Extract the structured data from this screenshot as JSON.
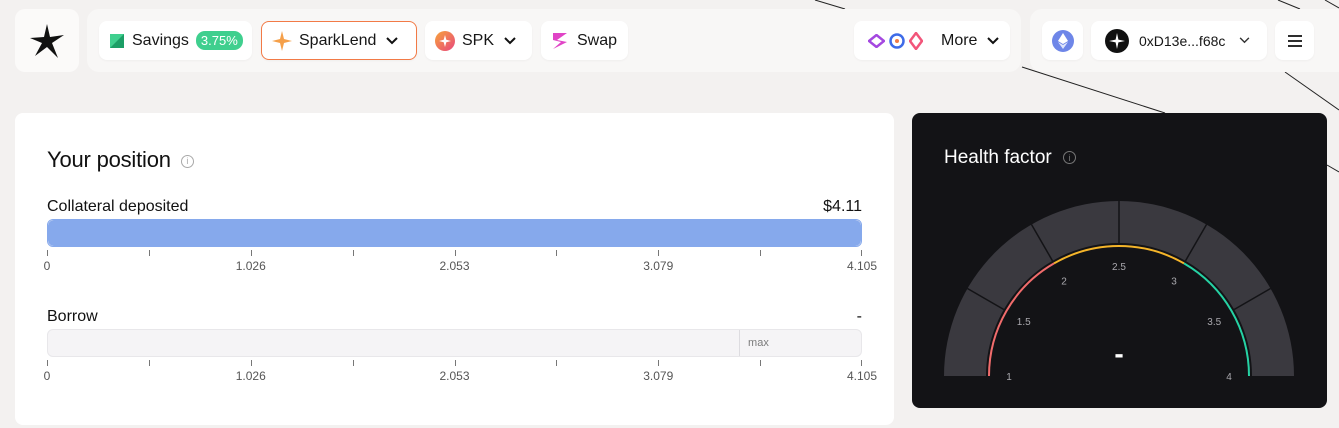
{
  "nav": {
    "savings_label": "Savings",
    "savings_rate": "3.75%",
    "sparklend_label": "SparkLend",
    "spk_label": "SPK",
    "swap_label": "Swap",
    "more_label": "More"
  },
  "wallet": {
    "address": "0xD13e...f68c",
    "network_icon": "ethereum-icon"
  },
  "position": {
    "title": "Your position",
    "collateral_label": "Collateral deposited",
    "collateral_value": "$4.11",
    "collateral_fill_fraction": 1.0,
    "borrow_label": "Borrow",
    "borrow_value": "-",
    "borrow_max_label": "max",
    "borrow_max_fraction": 0.85,
    "axis_ticks": [
      "0",
      "1.026",
      "2.053",
      "3.079",
      "4.105"
    ]
  },
  "health": {
    "title": "Health factor",
    "value": "-",
    "gauge_ticks": [
      "1",
      "1.5",
      "2",
      "2.5",
      "3",
      "3.5",
      "4"
    ],
    "colors": {
      "low": "#f16c6c",
      "mid": "#f5b52a",
      "high": "#26d2a4"
    }
  },
  "colors": {
    "accent_orange": "#f27a46",
    "collateral_bar": "#86a9ec",
    "savings_badge": "#3fcf8e"
  }
}
